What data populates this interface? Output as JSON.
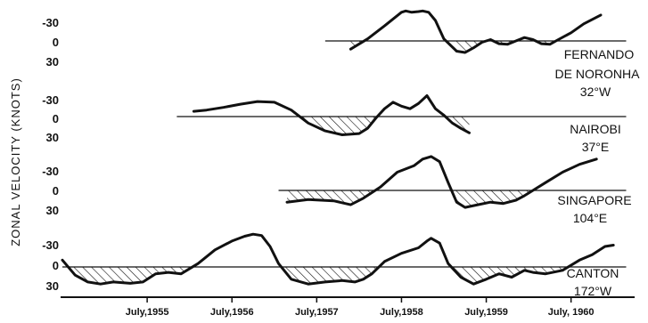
{
  "chart_data": {
    "type": "line",
    "ylabel": "ZONAL VELOCITY (KNOTS)",
    "x_ticks": [
      "July,1955",
      "July,1956",
      "July,1957",
      "July,1958",
      "July,1959",
      "July, 1960"
    ],
    "x_tick_years": [
      1955.5,
      1956.5,
      1957.5,
      1958.5,
      1959.5,
      1960.5
    ],
    "xlim": [
      1954.5,
      1961.25
    ],
    "y_tick_labels": [
      "-30",
      "0",
      "30"
    ],
    "ylim": [
      -35,
      35
    ],
    "y_inverted": true,
    "shading": "westerlies (positive values) hatched below zero line",
    "panels": [
      {
        "name": "FERNANDO\nDE NORONHA\n32°W",
        "zero_line": [
          1957.6,
          1961.15
        ],
        "x": [
          1957.9,
          1958.1,
          1958.3,
          1958.5,
          1958.55,
          1958.62,
          1958.7,
          1958.75,
          1958.82,
          1958.9,
          1959.0,
          1959.15,
          1959.25,
          1959.35,
          1959.45,
          1959.55,
          1959.65,
          1959.75,
          1959.85,
          1959.95,
          1960.05,
          1960.15,
          1960.25,
          1960.35,
          1960.5,
          1960.65,
          1960.85
        ],
        "values": [
          12,
          -3,
          -22,
          -42,
          -44,
          -42,
          -43,
          -44,
          -42,
          -30,
          -3,
          15,
          17,
          10,
          2,
          -2,
          4,
          5,
          0,
          -5,
          -2,
          4,
          5,
          -2,
          -12,
          -25,
          -38
        ]
      },
      {
        "name": "NAIROBI\n37°E",
        "zero_line": [
          1955.85,
          1961.15
        ],
        "x": [
          1956.05,
          1956.2,
          1956.4,
          1956.6,
          1956.8,
          1957.0,
          1957.2,
          1957.4,
          1957.6,
          1957.8,
          1958.0,
          1958.1,
          1958.2,
          1958.3,
          1958.4,
          1958.5,
          1958.6,
          1958.7,
          1958.8,
          1958.9,
          1959.0,
          1959.1,
          1959.2,
          1959.3
        ],
        "values": [
          -8,
          -10,
          -14,
          -19,
          -23,
          -22,
          -10,
          10,
          22,
          28,
          26,
          18,
          2,
          -12,
          -22,
          -16,
          -12,
          -20,
          -32,
          -12,
          -2,
          10,
          18,
          25
        ]
      },
      {
        "name": "SINGAPORE\n104°E",
        "zero_line": [
          1957.05,
          1961.15
        ],
        "x": [
          1957.15,
          1957.4,
          1957.7,
          1957.9,
          1958.05,
          1958.25,
          1958.45,
          1958.65,
          1958.75,
          1958.85,
          1958.95,
          1959.05,
          1959.15,
          1959.25,
          1959.4,
          1959.55,
          1959.7,
          1959.85,
          1959.95,
          1960.05,
          1960.2,
          1960.4,
          1960.6,
          1960.8
        ],
        "values": [
          18,
          14,
          16,
          22,
          12,
          -5,
          -28,
          -38,
          -48,
          -52,
          -44,
          -12,
          18,
          26,
          22,
          18,
          20,
          15,
          8,
          0,
          -12,
          -28,
          -40,
          -48
        ]
      },
      {
        "name": "CANTON\n172°W",
        "zero_line": [
          1954.5,
          1961.15
        ],
        "x": [
          1954.5,
          1954.65,
          1954.8,
          1954.95,
          1955.1,
          1955.3,
          1955.45,
          1955.6,
          1955.75,
          1955.9,
          1956.1,
          1956.3,
          1956.5,
          1956.65,
          1956.75,
          1956.85,
          1956.95,
          1957.05,
          1957.2,
          1957.4,
          1957.6,
          1957.8,
          1957.95,
          1958.05,
          1958.15,
          1958.3,
          1958.5,
          1958.7,
          1958.8,
          1958.85,
          1958.95,
          1959.05,
          1959.2,
          1959.35,
          1959.5,
          1959.65,
          1959.8,
          1959.95,
          1960.05,
          1960.2,
          1960.4,
          1960.6,
          1960.75,
          1960.9,
          1961.0
        ],
        "values": [
          -10,
          12,
          22,
          25,
          22,
          24,
          22,
          10,
          8,
          10,
          -5,
          -25,
          -38,
          -45,
          -48,
          -46,
          -30,
          -5,
          18,
          25,
          22,
          20,
          22,
          18,
          10,
          -8,
          -20,
          -28,
          -38,
          -42,
          -35,
          -5,
          15,
          25,
          18,
          10,
          15,
          5,
          8,
          10,
          5,
          -10,
          -18,
          -30,
          -32
        ]
      }
    ]
  }
}
